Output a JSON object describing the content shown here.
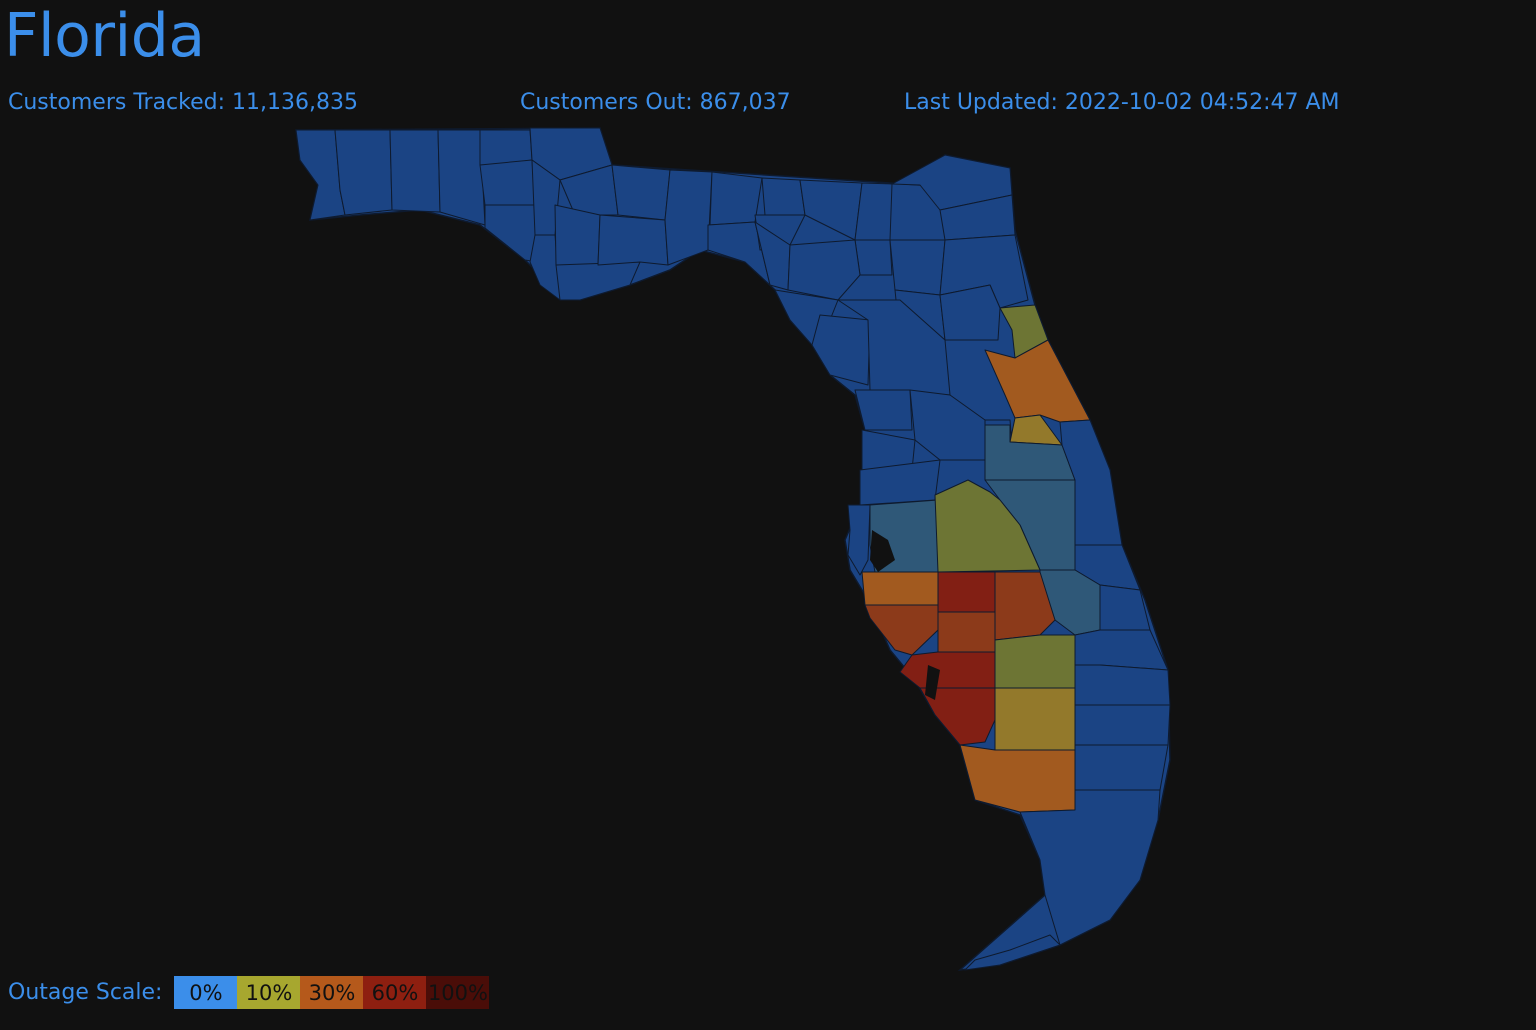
{
  "header": {
    "title": "Florida",
    "customers_tracked": "Customers Tracked: 11,136,835",
    "customers_out": "Customers Out: 867,037",
    "last_updated": "Last Updated: 2022-10-02 04:52:47 AM"
  },
  "legend": {
    "label": "Outage Scale:",
    "items": [
      {
        "label": "0%",
        "color": "#3b8eea"
      },
      {
        "label": "10%",
        "color": "#a7a72f"
      },
      {
        "label": "30%",
        "color": "#b5591b"
      },
      {
        "label": "60%",
        "color": "#8e1f10"
      },
      {
        "label": "100%",
        "color": "#4a0d08"
      }
    ]
  },
  "map": {
    "base_color": "#1b4484",
    "outage_colors": {
      "low": "#2f5878",
      "olive": "#6d7534",
      "amber": "#93792b",
      "orange": "#a25a1f",
      "burnt": "#8c3a1a",
      "red": "#821f14"
    }
  }
}
